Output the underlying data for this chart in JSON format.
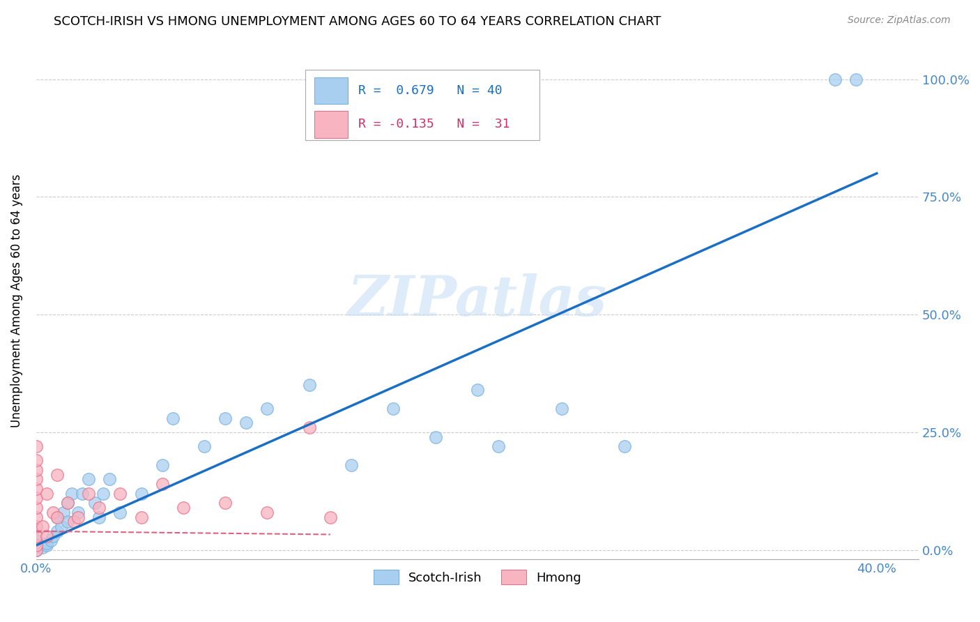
{
  "title": "SCOTCH-IRISH VS HMONG UNEMPLOYMENT AMONG AGES 60 TO 64 YEARS CORRELATION CHART",
  "source": "Source: ZipAtlas.com",
  "ylabel": "Unemployment Among Ages 60 to 64 years",
  "xlim": [
    0.0,
    0.42
  ],
  "ylim": [
    -0.02,
    1.08
  ],
  "R_scotch": 0.679,
  "N_scotch": 40,
  "R_hmong": -0.135,
  "N_hmong": 31,
  "scotch_color": "#a8cff0",
  "scotch_edge_color": "#7ab0de",
  "hmong_color": "#f8b4c0",
  "hmong_edge_color": "#e8708a",
  "trendline_scotch_color": "#1a6fc4",
  "trendline_hmong_color": "#e06080",
  "watermark_color": "#c8dff5",
  "scotch_points_x": [
    0.0,
    0.0,
    0.0,
    0.003,
    0.005,
    0.005,
    0.007,
    0.008,
    0.01,
    0.01,
    0.012,
    0.013,
    0.015,
    0.015,
    0.017,
    0.02,
    0.022,
    0.025,
    0.028,
    0.03,
    0.032,
    0.035,
    0.04,
    0.05,
    0.06,
    0.065,
    0.08,
    0.09,
    0.1,
    0.11,
    0.13,
    0.15,
    0.17,
    0.19,
    0.21,
    0.22,
    0.25,
    0.28,
    0.38,
    0.39
  ],
  "scotch_points_y": [
    0.0,
    0.01,
    0.02,
    0.005,
    0.01,
    0.015,
    0.02,
    0.03,
    0.04,
    0.07,
    0.05,
    0.08,
    0.06,
    0.1,
    0.12,
    0.08,
    0.12,
    0.15,
    0.1,
    0.07,
    0.12,
    0.15,
    0.08,
    0.12,
    0.18,
    0.28,
    0.22,
    0.28,
    0.27,
    0.3,
    0.35,
    0.18,
    0.3,
    0.24,
    0.34,
    0.22,
    0.3,
    0.22,
    1.0,
    1.0
  ],
  "hmong_points_x": [
    0.0,
    0.0,
    0.0,
    0.0,
    0.0,
    0.0,
    0.0,
    0.0,
    0.0,
    0.0,
    0.0,
    0.0,
    0.003,
    0.005,
    0.005,
    0.008,
    0.01,
    0.01,
    0.015,
    0.018,
    0.02,
    0.025,
    0.03,
    0.04,
    0.05,
    0.06,
    0.07,
    0.09,
    0.11,
    0.13,
    0.14
  ],
  "hmong_points_y": [
    0.0,
    0.01,
    0.03,
    0.05,
    0.07,
    0.09,
    0.11,
    0.13,
    0.15,
    0.17,
    0.19,
    0.22,
    0.05,
    0.03,
    0.12,
    0.08,
    0.07,
    0.16,
    0.1,
    0.06,
    0.07,
    0.12,
    0.09,
    0.12,
    0.07,
    0.14,
    0.09,
    0.1,
    0.08,
    0.26,
    0.07
  ]
}
